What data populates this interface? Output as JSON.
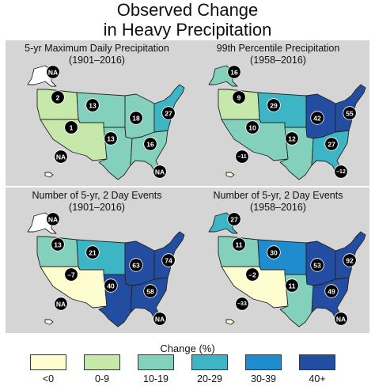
{
  "title_line1": "Observed Change",
  "title_line2": "in Heavy Precipitation",
  "colors": {
    "lt0": "#fdfdd0",
    "c0_9": "#c7e8ab",
    "c10_19": "#83d0bd",
    "c20_29": "#3db5c5",
    "c30_39": "#1f8ccf",
    "c40p": "#224da0"
  },
  "panels": [
    {
      "title1": "5-yr Maximum Daily Precipitation",
      "title2": "(1901–2016)",
      "regions": {
        "ak": "na",
        "nw": "c0_9",
        "sw": "c0_9",
        "ngp": "c10_19",
        "sgp": "c10_19",
        "mw": "c10_19",
        "se": "c10_19",
        "ne": "c20_29",
        "hi": "na"
      },
      "badges": {
        "ak": "NA",
        "nw": "2",
        "sw": "1",
        "ngp": "13",
        "sgp": "13",
        "mw": "18",
        "se": "16",
        "ne": "27",
        "hi": "NA",
        "pr": "NA"
      }
    },
    {
      "title1": "99th Percentile Precipitation",
      "title2": "(1958–2016)",
      "regions": {
        "ak": "c10_19",
        "nw": "c0_9",
        "sw": "c10_19",
        "ngp": "c20_29",
        "sgp": "c10_19",
        "mw": "c40p",
        "se": "c20_29",
        "ne": "c40p",
        "hi": "lt0"
      },
      "badges": {
        "ak": "16",
        "nw": "9",
        "sw": "10",
        "ngp": "29",
        "sgp": "12",
        "mw": "42",
        "se": "27",
        "ne": "55",
        "hi": "–11",
        "pr": "–12"
      }
    },
    {
      "title1": "Number of  5-yr, 2 Day Events",
      "title2": "(1901–2016)",
      "regions": {
        "ak": "na",
        "nw": "c10_19",
        "sw": "lt0",
        "ngp": "c20_29",
        "sgp": "c40p",
        "mw": "c40p",
        "se": "c40p",
        "ne": "c40p",
        "hi": "na"
      },
      "badges": {
        "ak": "NA",
        "nw": "13",
        "sw": "–7",
        "ngp": "21",
        "sgp": "40",
        "mw": "63",
        "se": "58",
        "ne": "74",
        "hi": "NA",
        "pr": "NA"
      }
    },
    {
      "title1": "Number of  5-yr, 2 Day Events",
      "title2": "(1958–2016)",
      "regions": {
        "ak": "c20_29",
        "nw": "c10_19",
        "sw": "lt0",
        "ngp": "c30_39",
        "sgp": "c10_19",
        "mw": "c40p",
        "se": "c40p",
        "ne": "c40p",
        "hi": "lt0"
      },
      "badges": {
        "ak": "27",
        "nw": "11",
        "sw": "–2",
        "ngp": "30",
        "sgp": "11",
        "mw": "53",
        "se": "49",
        "ne": "92",
        "hi": "–33",
        "pr": "NA"
      }
    }
  ],
  "legend": {
    "title": "Change (%)",
    "items": [
      {
        "label": "<0",
        "color": "lt0"
      },
      {
        "label": "0-9",
        "color": "c0_9"
      },
      {
        "label": "10-19",
        "color": "c10_19"
      },
      {
        "label": "20-29",
        "color": "c20_29"
      },
      {
        "label": "30-39",
        "color": "c30_39"
      },
      {
        "label": "40+",
        "color": "c40p"
      }
    ]
  }
}
